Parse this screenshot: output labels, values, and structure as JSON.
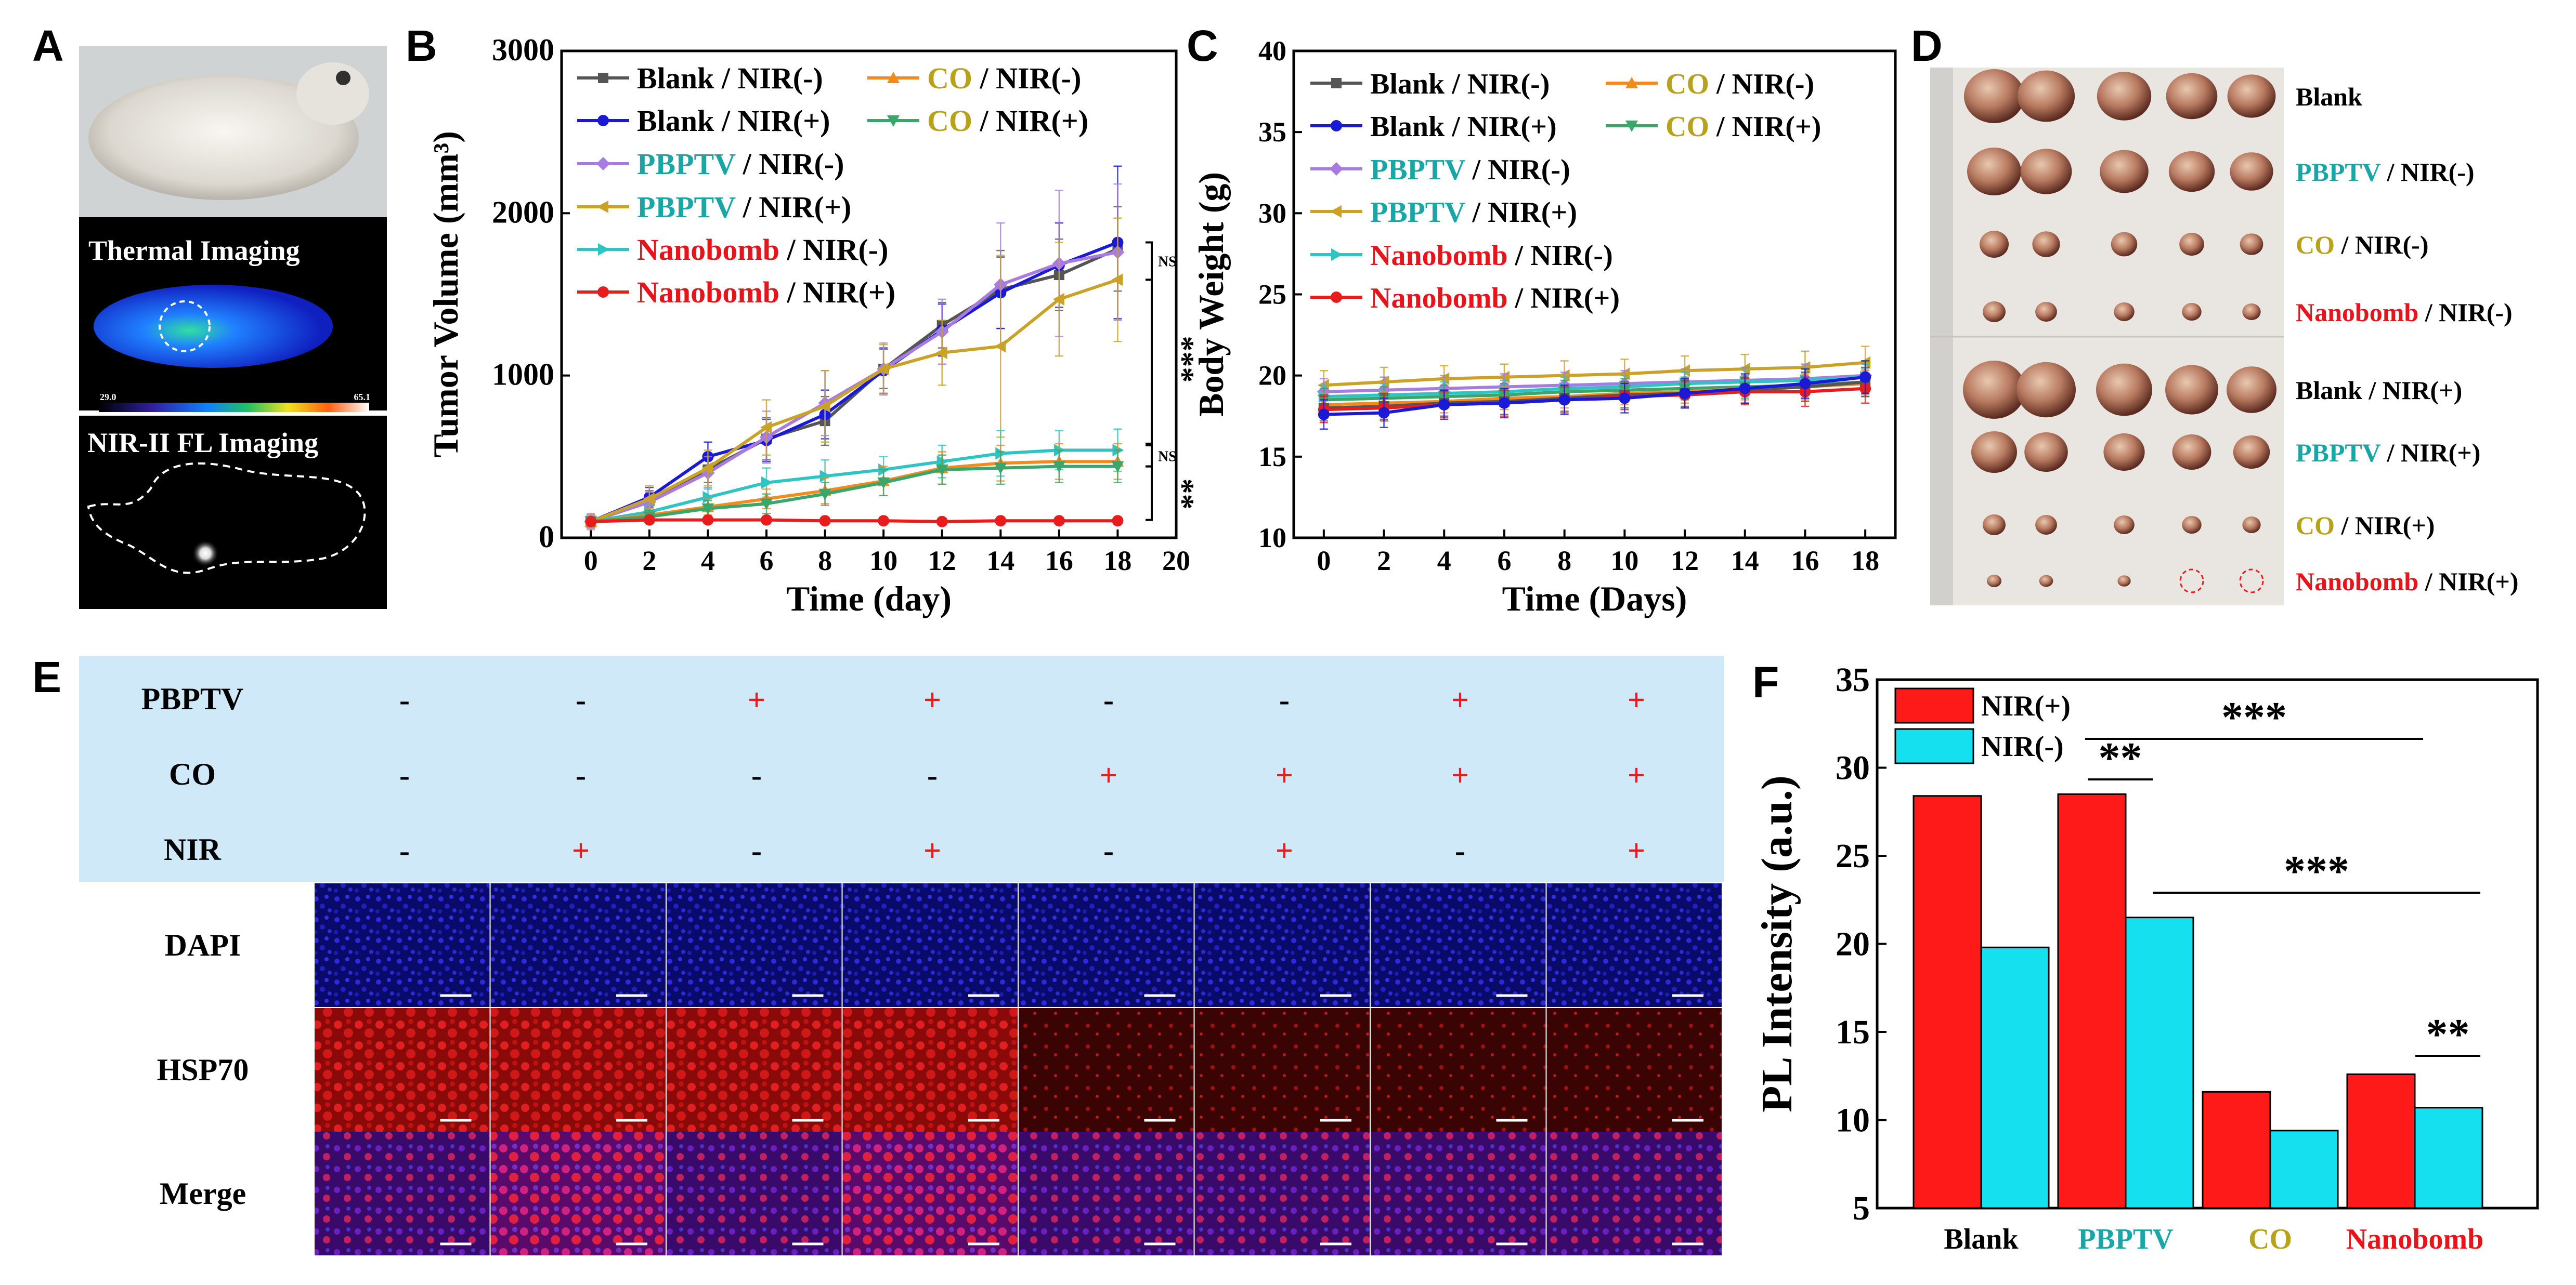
{
  "panels": {
    "A": "A",
    "B": "B",
    "C": "C",
    "D": "D",
    "E": "E",
    "F": "F"
  },
  "colors": {
    "blank_nir_minus": "#555555",
    "co_nir_minus": "#f28a1c",
    "blank_nir_plus": "#1a1ad6",
    "co_nir_plus": "#3aa66a",
    "pbptv_nir_minus": "#a87be0",
    "pbptv_nir_plus": "#c9a227",
    "nanobomb_nir_minus": "#2ec4c4",
    "nanobomb_nir_plus": "#e81c1c",
    "label_pbptv": "#1aa6a6",
    "label_co": "#b9a21b",
    "label_nanobomb": "#e8141c",
    "bar_nir_plus": "#ff1a1a",
    "bar_nir_minus": "#14e0f0",
    "table_bg": "#cfe9f8"
  },
  "panelA": {
    "thermal_label": "Thermal Imaging",
    "nir_label": "NIR-II FL Imaging",
    "scale_min": "29.0",
    "scale_max": "65.1"
  },
  "chart_data": [
    {
      "id": "B",
      "type": "line",
      "xlabel": "Time (day)",
      "ylabel": "Tumor Volume (mm³)",
      "xlim": [
        -1,
        20
      ],
      "ylim": [
        0,
        3000
      ],
      "xticks": [
        "0",
        "2",
        "4",
        "6",
        "8",
        "10",
        "12",
        "14",
        "16",
        "18",
        "20"
      ],
      "yticks": [
        "0",
        "1000",
        "2000",
        "3000"
      ],
      "x": [
        0,
        2,
        4,
        6,
        8,
        10,
        12,
        14,
        16,
        18
      ],
      "series": [
        {
          "name": "Blank / NIR(-)",
          "key": "blank_nir_minus",
          "marker": "square",
          "values": [
            100,
            230,
            420,
            610,
            720,
            1040,
            1310,
            1530,
            1620,
            1780
          ],
          "err": [
            40,
            60,
            80,
            130,
            150,
            120,
            140,
            240,
            220,
            260
          ]
        },
        {
          "name": "Blank / NIR(+)",
          "key": "blank_nir_plus",
          "marker": "circle",
          "values": [
            100,
            250,
            500,
            600,
            760,
            1030,
            1280,
            1510,
            1680,
            1820
          ],
          "err": [
            40,
            60,
            90,
            130,
            150,
            140,
            160,
            220,
            260,
            470
          ]
        },
        {
          "name": "PBPTV / NIR(-)",
          "key": "pbptv_nir_minus",
          "marker": "diamond",
          "values": [
            100,
            220,
            400,
            620,
            830,
            1040,
            1270,
            1560,
            1690,
            1760
          ],
          "err": [
            40,
            60,
            100,
            160,
            200,
            160,
            200,
            380,
            450,
            420
          ]
        },
        {
          "name": "PBPTV / NIR(+)",
          "key": "pbptv_nir_plus",
          "marker": "tri-left",
          "values": [
            100,
            240,
            430,
            680,
            810,
            1040,
            1140,
            1180,
            1470,
            1590
          ],
          "err": [
            50,
            80,
            110,
            170,
            220,
            150,
            200,
            560,
            350,
            380
          ]
        },
        {
          "name": "Nanobomb / NIR(-)",
          "key": "nanobomb_nir_minus",
          "marker": "tri-right",
          "values": [
            100,
            160,
            250,
            340,
            380,
            420,
            470,
            520,
            540,
            540
          ],
          "err": [
            30,
            40,
            60,
            90,
            100,
            80,
            100,
            140,
            120,
            130
          ]
        },
        {
          "name": "CO / NIR(-)",
          "key": "co_nir_minus",
          "marker": "tri-up",
          "values": [
            100,
            140,
            190,
            240,
            290,
            350,
            430,
            460,
            470,
            470
          ],
          "err": [
            30,
            40,
            50,
            60,
            80,
            90,
            100,
            110,
            110,
            110
          ]
        },
        {
          "name": "CO / NIR(+)",
          "key": "co_nir_plus",
          "marker": "tri-down",
          "values": [
            100,
            130,
            180,
            210,
            270,
            340,
            420,
            430,
            440,
            440
          ],
          "err": [
            30,
            40,
            50,
            60,
            70,
            80,
            90,
            100,
            100,
            100
          ]
        },
        {
          "name": "Nanobomb / NIR(+)",
          "key": "nanobomb_nir_plus",
          "marker": "circle",
          "values": [
            100,
            110,
            110,
            110,
            105,
            105,
            100,
            105,
            105,
            105
          ],
          "err": [
            15,
            15,
            15,
            15,
            15,
            15,
            15,
            15,
            15,
            15
          ]
        }
      ],
      "legend": [
        {
          "k": "blank_nir_minus",
          "a": "Blank",
          "ac": "#000000",
          "b": " / NIR(-)"
        },
        {
          "k": "co_nir_minus",
          "a": "CO",
          "ac": "#b9a21b",
          "b": " / NIR(-)"
        },
        {
          "k": "blank_nir_plus",
          "a": "Blank",
          "ac": "#000000",
          "b": " / NIR(+)"
        },
        {
          "k": "co_nir_plus",
          "a": "CO",
          "ac": "#b9a21b",
          "b": " / NIR(+)"
        },
        {
          "k": "pbptv_nir_minus",
          "a": "PBPTV",
          "ac": "#1aa6a6",
          "b": " / NIR(-)"
        },
        {
          "k": "pbptv_nir_plus",
          "a": "PBPTV",
          "ac": "#1aa6a6",
          "b": " / NIR(+)"
        },
        {
          "k": "nanobomb_nir_minus",
          "a": "Nanobomb",
          "ac": "#e8141c",
          "b": " / NIR(-)"
        },
        {
          "k": "nanobomb_nir_plus",
          "a": "Nanobomb",
          "ac": "#e8141c",
          "b": " / NIR(+)"
        }
      ],
      "sig": [
        "NS",
        "***",
        "NS",
        "**"
      ]
    },
    {
      "id": "C",
      "type": "line",
      "xlabel": "Time (Days)",
      "ylabel": "Body Weight (g)",
      "xlim": [
        -1,
        19
      ],
      "ylim": [
        10,
        40
      ],
      "xticks": [
        "0",
        "2",
        "4",
        "6",
        "8",
        "10",
        "12",
        "14",
        "16",
        "18"
      ],
      "yticks": [
        "10",
        "15",
        "20",
        "25",
        "30",
        "35",
        "40"
      ],
      "x": [
        0,
        2,
        4,
        6,
        8,
        10,
        12,
        14,
        16,
        18
      ],
      "series": [
        {
          "name": "PBPTV / NIR(+)",
          "key": "pbptv_nir_plus",
          "values": [
            19.4,
            19.6,
            19.8,
            19.9,
            20.0,
            20.1,
            20.3,
            20.4,
            20.5,
            20.8
          ],
          "err": [
            0.9,
            0.9,
            0.8,
            0.8,
            0.9,
            0.9,
            0.9,
            0.9,
            1.0,
            1.0
          ]
        },
        {
          "name": "PBPTV / NIR(-)",
          "key": "pbptv_nir_minus",
          "values": [
            19.0,
            19.1,
            19.2,
            19.3,
            19.4,
            19.5,
            19.6,
            19.7,
            19.8,
            20.0
          ],
          "err": [
            0.8,
            0.8,
            0.8,
            0.8,
            0.8,
            0.8,
            0.8,
            0.8,
            0.9,
            0.9
          ]
        },
        {
          "name": "Nanobomb / NIR(-)",
          "key": "nanobomb_nir_minus",
          "values": [
            18.7,
            18.8,
            18.9,
            19.0,
            19.2,
            19.3,
            19.5,
            19.6,
            19.7,
            19.9
          ],
          "err": [
            0.7,
            0.7,
            0.7,
            0.7,
            0.7,
            0.7,
            0.7,
            0.8,
            0.8,
            0.8
          ]
        },
        {
          "name": "CO / NIR(+)",
          "key": "co_nir_plus",
          "values": [
            18.5,
            18.6,
            18.7,
            18.8,
            19.0,
            19.1,
            19.2,
            19.3,
            19.4,
            19.6
          ],
          "err": [
            0.7,
            0.7,
            0.7,
            0.7,
            0.7,
            0.7,
            0.7,
            0.7,
            0.8,
            0.8
          ]
        },
        {
          "name": "CO / NIR(-)",
          "key": "co_nir_minus",
          "values": [
            18.2,
            18.3,
            18.4,
            18.6,
            18.7,
            18.9,
            19.0,
            19.2,
            19.3,
            19.5
          ],
          "err": [
            0.7,
            0.7,
            0.7,
            0.7,
            0.7,
            0.7,
            0.7,
            0.7,
            0.8,
            0.8
          ]
        },
        {
          "name": "Blank / NIR(-)",
          "key": "blank_nir_minus",
          "values": [
            18.0,
            18.1,
            18.3,
            18.4,
            18.6,
            18.8,
            18.9,
            19.1,
            19.3,
            19.6
          ],
          "err": [
            0.8,
            0.8,
            0.8,
            0.8,
            0.8,
            0.8,
            0.8,
            0.8,
            0.9,
            0.9
          ]
        },
        {
          "name": "Nanobomb / NIR(+)",
          "key": "nanobomb_nir_plus",
          "values": [
            17.9,
            18.0,
            18.2,
            18.3,
            18.5,
            18.7,
            18.8,
            19.0,
            19.0,
            19.2
          ],
          "err": [
            0.8,
            0.8,
            0.8,
            0.8,
            0.8,
            0.8,
            0.8,
            0.8,
            0.9,
            0.9
          ]
        },
        {
          "name": "Blank / NIR(+)",
          "key": "blank_nir_plus",
          "values": [
            17.6,
            17.7,
            18.2,
            18.3,
            18.5,
            18.6,
            18.9,
            19.2,
            19.5,
            19.9
          ],
          "err": [
            0.9,
            0.9,
            0.9,
            0.9,
            0.9,
            0.9,
            0.9,
            0.9,
            0.9,
            1.0
          ]
        }
      ]
    },
    {
      "id": "F",
      "type": "bar",
      "ylabel": "PL Intensity (a.u.)",
      "ylim": [
        5,
        35
      ],
      "yticks": [
        "5",
        "10",
        "15",
        "20",
        "25",
        "30",
        "35"
      ],
      "categories": [
        "Blank",
        "PBPTV",
        "CO",
        "Nanobomb"
      ],
      "category_colors": [
        "#000000",
        "#1aa6a6",
        "#b9a21b",
        "#e8141c"
      ],
      "series": [
        {
          "name": "NIR(+)",
          "values": [
            28.4,
            28.5,
            11.6,
            12.6
          ]
        },
        {
          "name": "NIR(-)",
          "values": [
            19.8,
            21.5,
            9.4,
            10.7
          ]
        }
      ],
      "sig": [
        "***",
        "**",
        "***",
        "**"
      ]
    }
  ],
  "panelD": {
    "rows": [
      {
        "a": "Blank",
        "ac": "#000000",
        "b": ""
      },
      {
        "a": "PBPTV",
        "ac": "#1aa6a6",
        "b": " / NIR(-)"
      },
      {
        "a": "CO",
        "ac": "#b9a21b",
        "b": " / NIR(-)"
      },
      {
        "a": "Nanobomb",
        "ac": "#e8141c",
        "b": " / NIR(-)"
      },
      {
        "a": "Blank",
        "ac": "#000000",
        "b": " / NIR(+)"
      },
      {
        "a": "PBPTV",
        "ac": "#1aa6a6",
        "b": " / NIR(+)"
      },
      {
        "a": "CO",
        "ac": "#b9a21b",
        "b": " / NIR(+)"
      },
      {
        "a": "Nanobomb",
        "ac": "#e8141c",
        "b": " / NIR(+)"
      }
    ]
  },
  "panelE": {
    "factors": [
      {
        "name": "PBPTV",
        "signs": [
          "-",
          "-",
          "+",
          "+",
          "-",
          "-",
          "+",
          "+"
        ]
      },
      {
        "name": "CO",
        "signs": [
          "-",
          "-",
          "-",
          "-",
          "+",
          "+",
          "+",
          "+"
        ]
      },
      {
        "name": "NIR",
        "signs": [
          "-",
          "+",
          "-",
          "+",
          "-",
          "+",
          "-",
          "+"
        ]
      }
    ],
    "stains": [
      "DAPI",
      "HSP70",
      "Merge"
    ]
  }
}
